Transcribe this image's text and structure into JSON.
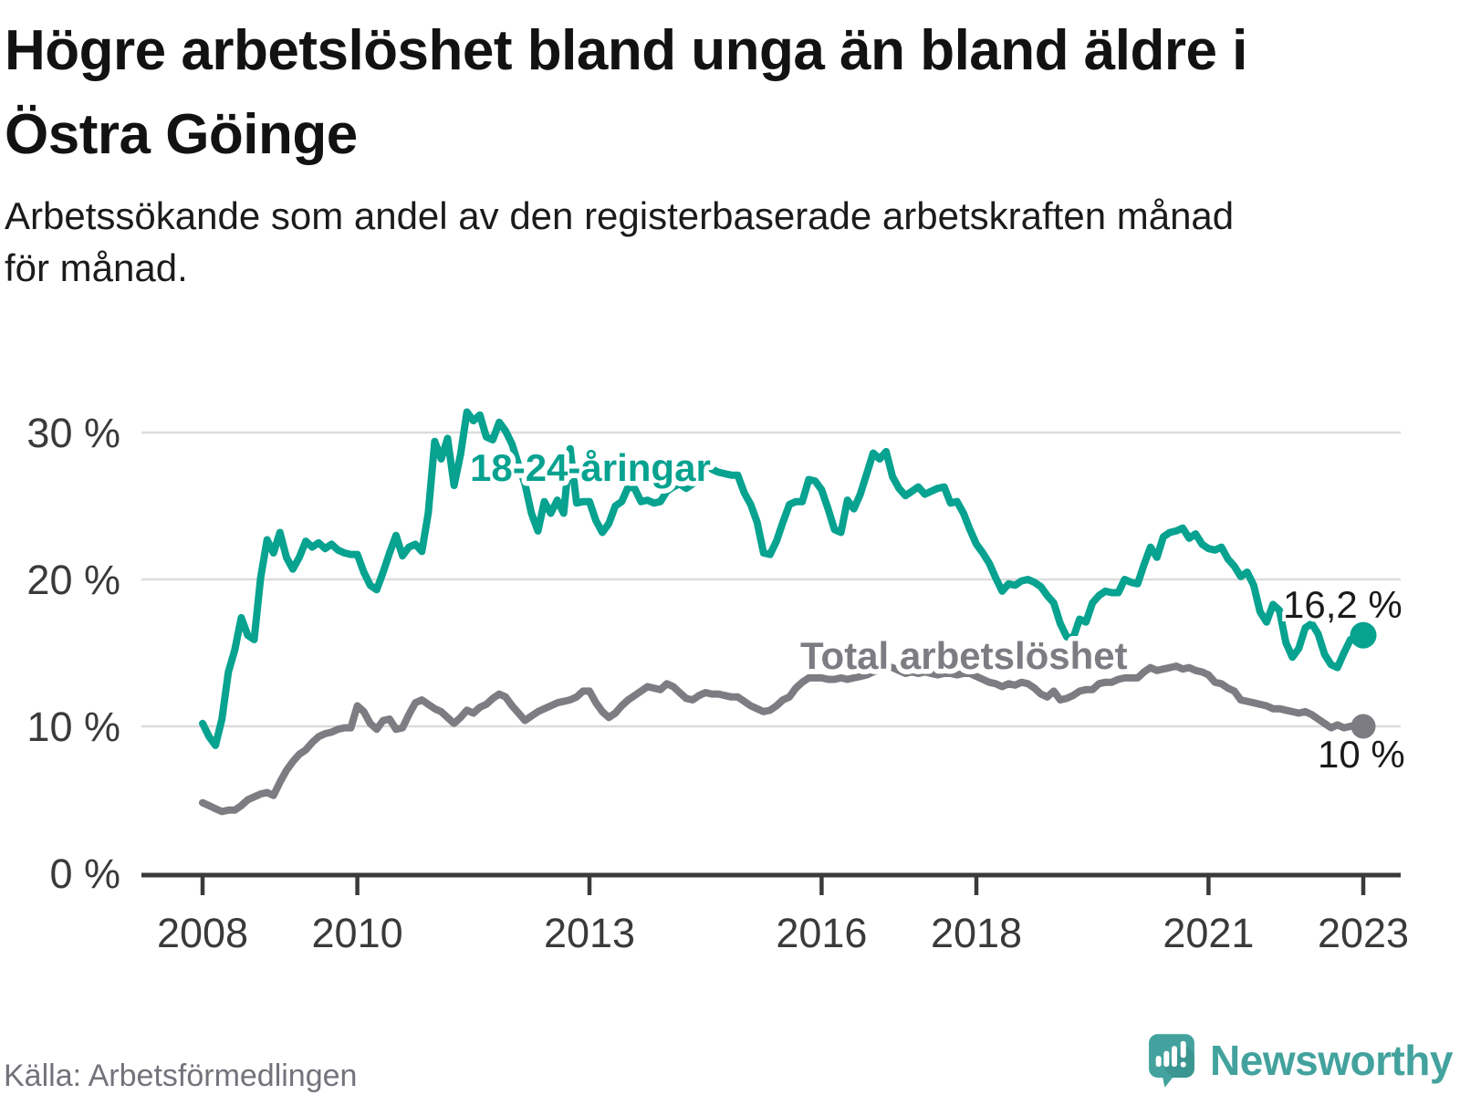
{
  "header": {
    "title_lines": [
      "Högre arbetslöshet bland unga än bland äldre i",
      "Östra Göinge"
    ],
    "subtitle_lines": [
      "Arbetssökande som andel av den registerbaserade arbetskraften månad",
      "för månad."
    ]
  },
  "footer": {
    "source": "Källa: Arbetsförmedlingen",
    "brand": "Newsworthy",
    "brand_color": "#43a29d"
  },
  "chart_data": {
    "type": "line",
    "unit": "%",
    "x_start": "2008-01",
    "x_end": "2023-01",
    "x_interval": "month",
    "x_ticks": [
      2008,
      2010,
      2013,
      2016,
      2018,
      2021,
      2023
    ],
    "y_ticks": [
      {
        "value": 0,
        "label": "0 %"
      },
      {
        "value": 10,
        "label": "10 %"
      },
      {
        "value": 20,
        "label": "20 %"
      },
      {
        "value": 30,
        "label": "30 %"
      }
    ],
    "ylim": [
      0,
      33
    ],
    "grid": "horizontal",
    "legend_position": "inline-labels",
    "series": [
      {
        "name": "18-24-åringar",
        "color": "#07a290",
        "inline_label": "18-24-åringar",
        "end_label": "16,2 %",
        "end_value": 16.2,
        "values": [
          10.2,
          9.3,
          8.7,
          10.5,
          13.7,
          15.2,
          17.4,
          16.2,
          15.9,
          20.1,
          22.7,
          21.8,
          23.2,
          21.5,
          20.7,
          21.5,
          22.6,
          22.2,
          22.5,
          22.1,
          22.4,
          22.0,
          21.8,
          21.7,
          21.7,
          20.5,
          19.6,
          19.3,
          20.5,
          21.8,
          23.0,
          21.6,
          22.2,
          22.4,
          21.9,
          24.5,
          29.4,
          28.2,
          29.6,
          26.4,
          28.5,
          31.4,
          30.8,
          31.2,
          29.7,
          29.5,
          30.7,
          30.1,
          29.2,
          27.8,
          26.5,
          24.5,
          23.3,
          25.3,
          24.5,
          25.4,
          24.5,
          28.9,
          25.2,
          25.3,
          25.3,
          24.0,
          23.2,
          23.8,
          25.0,
          25.3,
          26.3,
          26.2,
          25.3,
          25.4,
          25.2,
          25.3,
          26.0,
          26.3,
          26.5,
          26.2,
          26.5,
          26.9,
          27.9,
          27.5,
          27.3,
          27.2,
          27.1,
          27.1,
          25.9,
          25.1,
          23.9,
          21.8,
          21.7,
          22.6,
          23.9,
          25.1,
          25.3,
          25.3,
          26.8,
          26.7,
          26.1,
          24.8,
          23.4,
          23.2,
          25.4,
          24.8,
          25.8,
          27.2,
          28.6,
          28.2,
          28.7,
          27.0,
          26.2,
          25.7,
          26.0,
          26.3,
          25.8,
          26.0,
          26.2,
          26.3,
          25.2,
          25.3,
          24.5,
          23.4,
          22.4,
          21.8,
          21.1,
          20.1,
          19.2,
          19.7,
          19.6,
          19.9,
          20.0,
          19.8,
          19.5,
          18.9,
          18.4,
          17.0,
          16.1,
          16.0,
          17.3,
          17.1,
          18.4,
          18.9,
          19.2,
          19.1,
          19.1,
          20.0,
          19.8,
          19.7,
          21.0,
          22.2,
          21.5,
          22.9,
          23.2,
          23.3,
          23.5,
          22.8,
          23.1,
          22.4,
          22.1,
          22.0,
          22.2,
          21.4,
          20.9,
          20.2,
          20.5,
          19.6,
          17.8,
          17.1,
          18.3,
          17.9,
          15.7,
          14.7,
          15.3,
          16.7,
          17.0,
          16.3,
          14.9,
          14.2,
          14.0,
          15.0,
          15.9,
          16.1,
          16.2
        ]
      },
      {
        "name": "Total arbetslöshet",
        "color": "#7c7c82",
        "inline_label": "Total arbetslöshet",
        "end_label": "10 %",
        "end_value": 10,
        "values": [
          4.8,
          4.6,
          4.4,
          4.2,
          4.3,
          4.3,
          4.6,
          5.0,
          5.2,
          5.4,
          5.5,
          5.3,
          6.2,
          7.0,
          7.6,
          8.1,
          8.4,
          8.9,
          9.3,
          9.5,
          9.6,
          9.8,
          9.9,
          9.9,
          11.4,
          11.0,
          10.2,
          9.8,
          10.4,
          10.5,
          9.8,
          9.9,
          10.8,
          11.6,
          11.8,
          11.5,
          11.2,
          11.0,
          10.6,
          10.2,
          10.6,
          11.1,
          10.9,
          11.3,
          11.5,
          11.9,
          12.2,
          12.0,
          11.4,
          10.9,
          10.4,
          10.7,
          11.0,
          11.2,
          11.4,
          11.6,
          11.7,
          11.8,
          12.0,
          12.4,
          12.4,
          11.6,
          11.0,
          10.6,
          10.9,
          11.4,
          11.8,
          12.1,
          12.4,
          12.7,
          12.6,
          12.5,
          12.9,
          12.7,
          12.3,
          11.9,
          11.8,
          12.1,
          12.3,
          12.2,
          12.2,
          12.1,
          12.0,
          12.0,
          11.7,
          11.4,
          11.2,
          11.0,
          11.1,
          11.4,
          11.8,
          12.0,
          12.6,
          13.0,
          13.3,
          13.3,
          13.3,
          13.2,
          13.2,
          13.3,
          13.2,
          13.3,
          13.4,
          13.5,
          13.7,
          13.9,
          14.1,
          14.0,
          13.8,
          13.6,
          13.7,
          13.6,
          13.7,
          13.6,
          13.5,
          13.6,
          13.6,
          13.5,
          13.6,
          13.6,
          13.4,
          13.2,
          13.0,
          12.9,
          12.7,
          12.9,
          12.8,
          13.0,
          12.9,
          12.6,
          12.2,
          12.0,
          12.4,
          11.8,
          11.9,
          12.1,
          12.4,
          12.5,
          12.5,
          12.9,
          13.0,
          13.0,
          13.2,
          13.3,
          13.3,
          13.3,
          13.7,
          14.0,
          13.8,
          13.9,
          14.0,
          14.1,
          13.9,
          14.0,
          13.8,
          13.7,
          13.5,
          13.0,
          12.9,
          12.6,
          12.4,
          11.8,
          11.7,
          11.6,
          11.5,
          11.4,
          11.2,
          11.2,
          11.1,
          11.0,
          10.9,
          11.0,
          10.8,
          10.5,
          10.2,
          9.9,
          10.1,
          9.9,
          10.0,
          10.1,
          10.0
        ]
      }
    ],
    "axis_color": "#3a3a3a",
    "grid_color": "#dcdcdc",
    "value_label_color": "#1a1a1a"
  }
}
